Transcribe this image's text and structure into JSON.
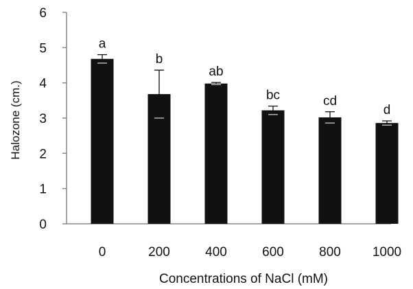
{
  "chart_data": {
    "type": "bar",
    "title": "",
    "xlabel": "Concentrations of NaCl (mM)",
    "ylabel": "Halozone (cm.)",
    "categories": [
      "0",
      "200",
      "400",
      "600",
      "800",
      "1000"
    ],
    "values": [
      4.68,
      3.68,
      3.98,
      3.22,
      3.02,
      2.86
    ],
    "errors": [
      0.12,
      0.68,
      0.03,
      0.12,
      0.16,
      0.06
    ],
    "annotations": [
      "a",
      "b",
      "ab",
      "bc",
      "cd",
      "d"
    ],
    "ylim": [
      0,
      6
    ],
    "yticks": [
      "0",
      "1",
      "2",
      "3",
      "4",
      "5",
      "6"
    ],
    "grid": false,
    "legend": "none",
    "colors": {
      "bar": "#111111",
      "axis": "#888888",
      "text": "#111111"
    }
  }
}
